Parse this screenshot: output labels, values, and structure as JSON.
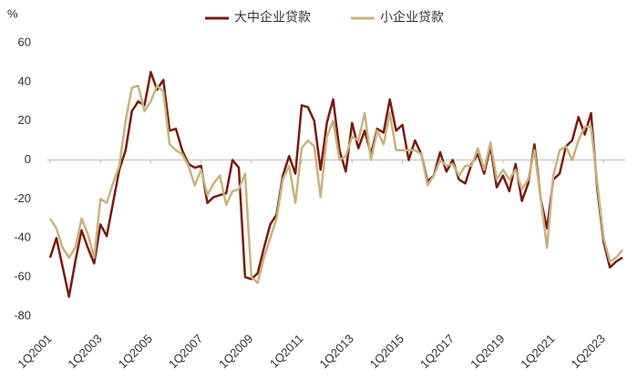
{
  "chart_data": {
    "type": "line",
    "y_label": "%",
    "categories": [
      "1Q2001",
      null,
      null,
      null,
      null,
      null,
      null,
      null,
      "1Q2003",
      null,
      null,
      null,
      null,
      null,
      null,
      null,
      "1Q2005",
      null,
      null,
      null,
      null,
      null,
      null,
      null,
      "1Q2007",
      null,
      null,
      null,
      null,
      null,
      null,
      null,
      "1Q2009",
      null,
      null,
      null,
      null,
      null,
      null,
      null,
      "1Q2011",
      null,
      null,
      null,
      null,
      null,
      null,
      null,
      "1Q2013",
      null,
      null,
      null,
      null,
      null,
      null,
      null,
      "1Q2015",
      null,
      null,
      null,
      null,
      null,
      null,
      null,
      "1Q2017",
      null,
      null,
      null,
      null,
      null,
      null,
      null,
      "1Q2019",
      null,
      null,
      null,
      null,
      null,
      null,
      null,
      "1Q2021",
      null,
      null,
      null,
      null,
      null,
      null,
      null,
      "1Q2023",
      null,
      null,
      null
    ],
    "series": [
      {
        "name": "大中企业贷款",
        "color": "#7b1a0f",
        "values": [
          -50,
          -40,
          -55,
          -70,
          -52,
          -36,
          -45,
          -53,
          -33,
          -39,
          -22,
          -5,
          5,
          25,
          30,
          28,
          45,
          36,
          41,
          15,
          16,
          5,
          -2,
          -4,
          -3,
          -22,
          -19,
          -18,
          -17,
          0,
          -4,
          -60,
          -61,
          -58,
          -45,
          -33,
          -28,
          -8,
          2,
          -7,
          28,
          27,
          20,
          -5,
          19,
          31,
          5,
          -6,
          19,
          6,
          15,
          3,
          16,
          14,
          31,
          15,
          18,
          0,
          10,
          3,
          -11,
          -8,
          4,
          -6,
          0,
          -10,
          -12,
          -2,
          3,
          -7,
          7,
          -14,
          -8,
          -16,
          -2,
          -21,
          -12,
          8,
          -20,
          -35,
          -10,
          -7,
          7,
          10,
          22,
          13,
          24,
          -15,
          -42,
          -55,
          -52,
          -50
        ]
      },
      {
        "name": "小企业贷款",
        "color": "#c9b27c",
        "values": [
          -30,
          -35,
          -45,
          -50,
          -45,
          -30,
          -38,
          -50,
          -20,
          -22,
          -12,
          -3,
          20,
          37,
          38,
          25,
          30,
          38,
          35,
          8,
          5,
          3,
          -3,
          -13,
          -5,
          -18,
          -12,
          -8,
          -23,
          -16,
          -15,
          -7,
          -60,
          -63,
          -50,
          -40,
          -30,
          -10,
          -3,
          -22,
          6,
          10,
          7,
          -19,
          12,
          20,
          0,
          2,
          12,
          10,
          24,
          0,
          15,
          8,
          24,
          5,
          5,
          5,
          5,
          3,
          -13,
          -8,
          0,
          -3,
          -2,
          -8,
          -3,
          -3,
          6,
          -5,
          9,
          -10,
          -5,
          -10,
          -5,
          -15,
          -10,
          5,
          -20,
          -45,
          -8,
          5,
          7,
          0,
          10,
          17,
          17,
          -12,
          -40,
          -52,
          -50,
          -46
        ]
      }
    ],
    "ylim": [
      -80,
      60
    ],
    "yticks": [
      -80,
      -60,
      -40,
      -20,
      0,
      20,
      40,
      60
    ]
  }
}
